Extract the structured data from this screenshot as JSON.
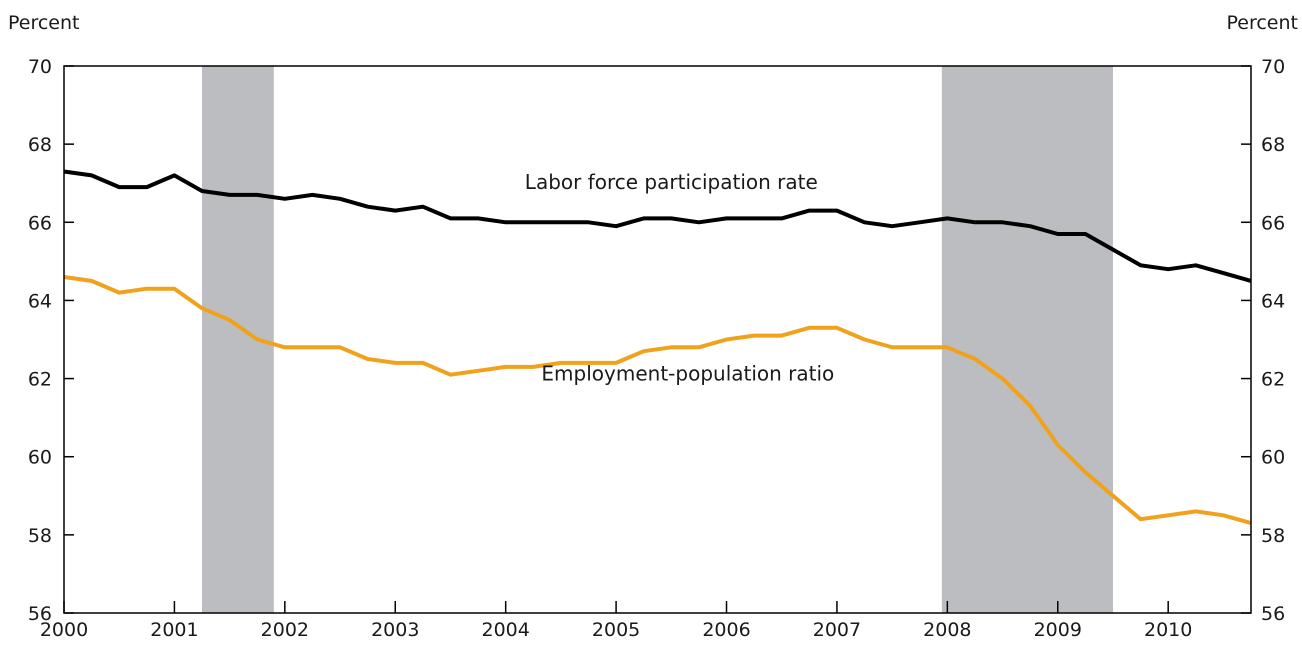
{
  "chart_data": {
    "type": "line",
    "ylabel_left": "Percent",
    "ylabel_right": "Percent",
    "ylim": [
      56,
      70
    ],
    "yticks": [
      56,
      58,
      60,
      62,
      64,
      66,
      68,
      70
    ],
    "xlim": [
      2000,
      2010.75
    ],
    "xticks": [
      2000,
      2001,
      2002,
      2003,
      2004,
      2005,
      2006,
      2007,
      2008,
      2009,
      2010
    ],
    "grid": false,
    "recessions": [
      {
        "start": 2001.25,
        "end": 2001.9
      },
      {
        "start": 2007.95,
        "end": 2009.5
      }
    ],
    "x": [
      2000,
      2000.25,
      2000.5,
      2000.75,
      2001,
      2001.25,
      2001.5,
      2001.75,
      2002,
      2002.25,
      2002.5,
      2002.75,
      2003,
      2003.25,
      2003.5,
      2003.75,
      2004,
      2004.25,
      2004.5,
      2004.75,
      2005,
      2005.25,
      2005.5,
      2005.75,
      2006,
      2006.25,
      2006.5,
      2006.75,
      2007,
      2007.25,
      2007.5,
      2007.75,
      2008,
      2008.25,
      2008.5,
      2008.75,
      2009,
      2009.25,
      2009.5,
      2009.75,
      2010,
      2010.25,
      2010.5,
      2010.75
    ],
    "series": [
      {
        "name": "Labor force participation rate",
        "color": "#000000",
        "values": [
          67.3,
          67.2,
          66.9,
          66.9,
          67.2,
          66.8,
          66.7,
          66.7,
          66.6,
          66.7,
          66.6,
          66.4,
          66.3,
          66.4,
          66.1,
          66.1,
          66.0,
          66.0,
          66.0,
          66.0,
          65.9,
          66.1,
          66.1,
          66.0,
          66.1,
          66.1,
          66.1,
          66.3,
          66.3,
          66.0,
          65.9,
          66.0,
          66.1,
          66.0,
          66.0,
          65.9,
          65.7,
          65.7,
          65.3,
          64.9,
          64.8,
          64.9,
          64.7,
          64.5
        ]
      },
      {
        "name": "Employment-population ratio",
        "color": "#f0a21d",
        "values": [
          64.6,
          64.5,
          64.2,
          64.3,
          64.3,
          63.8,
          63.5,
          63.0,
          62.8,
          62.8,
          62.8,
          62.5,
          62.4,
          62.4,
          62.1,
          62.2,
          62.3,
          62.3,
          62.4,
          62.4,
          62.4,
          62.7,
          62.8,
          62.8,
          63.0,
          63.1,
          63.1,
          63.3,
          63.3,
          63.0,
          62.8,
          62.8,
          62.8,
          62.5,
          62.0,
          61.3,
          60.3,
          59.6,
          59.0,
          58.4,
          58.5,
          58.6,
          58.5,
          58.3
        ]
      }
    ],
    "annotations": [
      {
        "text": "Labor force participation rate",
        "x": 2005.5,
        "y": 66.85,
        "anchor": "middle"
      },
      {
        "text": "Employment-population ratio",
        "x": 2005.65,
        "y": 61.95,
        "anchor": "middle"
      }
    ]
  }
}
